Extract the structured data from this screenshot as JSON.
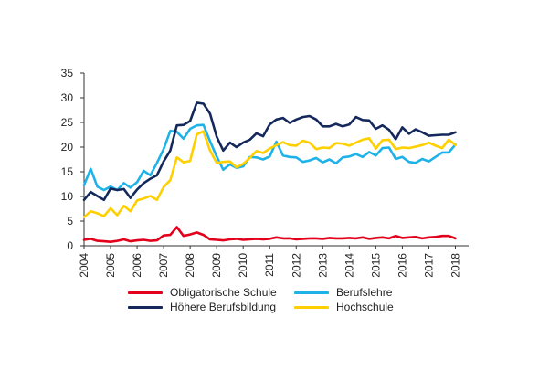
{
  "chart_data": {
    "type": "line",
    "title": "",
    "xlabel": "",
    "ylabel": "",
    "ylim": [
      0,
      35
    ],
    "xlim": [
      2004,
      2018.5
    ],
    "yticks": [
      "0",
      "5",
      "10",
      "15",
      "20",
      "25",
      "30",
      "35"
    ],
    "xticks": [
      "2004",
      "2005",
      "2006",
      "2007",
      "2008",
      "2009",
      "2010",
      "2011",
      "2012",
      "2013",
      "2014",
      "2015",
      "2016",
      "2017",
      "2018"
    ],
    "grid": false,
    "legend_position": "bottom",
    "x": [
      2004.0,
      2004.25,
      2004.5,
      2004.75,
      2005.0,
      2005.25,
      2005.5,
      2005.75,
      2006.0,
      2006.25,
      2006.5,
      2006.75,
      2007.0,
      2007.25,
      2007.5,
      2007.75,
      2008.0,
      2008.25,
      2008.5,
      2008.75,
      2009.0,
      2009.25,
      2009.5,
      2009.75,
      2010.0,
      2010.25,
      2010.5,
      2010.75,
      2011.0,
      2011.25,
      2011.5,
      2011.75,
      2012.0,
      2012.25,
      2012.5,
      2012.75,
      2013.0,
      2013.25,
      2013.5,
      2013.75,
      2014.0,
      2014.25,
      2014.5,
      2014.75,
      2015.0,
      2015.25,
      2015.5,
      2015.75,
      2016.0,
      2016.25,
      2016.5,
      2016.75,
      2017.0,
      2017.25,
      2017.5,
      2017.75,
      2018.0
    ],
    "series": [
      {
        "name": "Obligatorische Schule",
        "color": "#e3001b",
        "values": [
          1.2,
          1.4,
          1.0,
          0.9,
          0.8,
          1.0,
          1.3,
          0.9,
          1.1,
          1.2,
          1.0,
          1.1,
          2.1,
          2.2,
          3.8,
          2.0,
          2.3,
          2.7,
          2.2,
          1.3,
          1.2,
          1.1,
          1.3,
          1.4,
          1.2,
          1.3,
          1.4,
          1.3,
          1.4,
          1.7,
          1.5,
          1.5,
          1.3,
          1.4,
          1.5,
          1.5,
          1.4,
          1.6,
          1.5,
          1.5,
          1.6,
          1.5,
          1.7,
          1.4,
          1.6,
          1.7,
          1.5,
          2.0,
          1.6,
          1.7,
          1.8,
          1.5,
          1.7,
          1.8,
          2.0,
          2.0,
          1.5
        ]
      },
      {
        "name": "Berufslehre",
        "color": "#1fb2e8",
        "values": [
          12.3,
          15.6,
          12.0,
          11.3,
          12.0,
          11.3,
          12.7,
          11.8,
          12.9,
          15.2,
          14.3,
          16.8,
          19.6,
          23.3,
          23.1,
          21.7,
          23.7,
          24.4,
          24.5,
          21.2,
          18.1,
          15.4,
          16.5,
          15.8,
          16.1,
          18.0,
          17.9,
          17.5,
          18.1,
          21.1,
          18.3,
          18.0,
          17.9,
          17.0,
          17.3,
          17.8,
          16.9,
          17.5,
          16.7,
          17.9,
          18.1,
          18.6,
          18.0,
          19.0,
          18.3,
          19.8,
          19.9,
          17.6,
          18.0,
          17.0,
          16.8,
          17.6,
          17.1,
          18.0,
          18.9,
          18.9,
          20.5
        ]
      },
      {
        "name": "Höhere Berufsbildung",
        "color": "#14285c",
        "values": [
          9.3,
          10.9,
          10.1,
          9.3,
          11.6,
          11.3,
          11.5,
          9.7,
          11.4,
          12.7,
          13.6,
          14.3,
          17.1,
          19.3,
          24.4,
          24.5,
          25.3,
          29.0,
          28.8,
          26.8,
          22.1,
          19.3,
          20.9,
          20.0,
          20.9,
          21.5,
          22.8,
          22.2,
          24.6,
          25.6,
          25.9,
          24.9,
          25.6,
          26.1,
          26.3,
          25.6,
          24.2,
          24.2,
          24.7,
          24.2,
          24.6,
          26.1,
          25.5,
          25.4,
          23.7,
          24.4,
          23.5,
          21.6,
          24.0,
          22.7,
          23.6,
          23.0,
          22.3,
          22.4,
          22.5,
          22.5,
          23.0
        ]
      },
      {
        "name": "Hochschule",
        "color": "#ffcf00",
        "values": [
          5.8,
          7.0,
          6.6,
          6.0,
          7.6,
          6.2,
          8.1,
          7.0,
          9.2,
          9.6,
          10.1,
          9.3,
          11.9,
          13.3,
          17.9,
          16.9,
          17.2,
          22.6,
          23.2,
          19.3,
          16.8,
          17.0,
          17.1,
          15.9,
          16.6,
          17.8,
          19.2,
          18.8,
          19.7,
          20.4,
          21.0,
          20.4,
          20.3,
          21.3,
          20.9,
          19.6,
          19.9,
          19.8,
          20.8,
          20.7,
          20.3,
          20.9,
          21.5,
          21.8,
          19.7,
          21.4,
          21.5,
          19.6,
          19.9,
          19.8,
          20.1,
          20.4,
          20.9,
          20.3,
          19.8,
          21.5,
          20.4
        ]
      }
    ]
  }
}
